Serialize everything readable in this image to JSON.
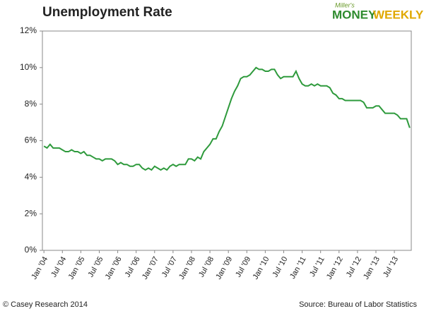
{
  "chart_data": {
    "type": "line",
    "title": "Unemployment Rate",
    "logo": {
      "small": "Miller's",
      "left": "MONEY",
      "right": "WEEKLY"
    },
    "credit": "© Casey Research 2014",
    "source": "Source: Bureau of Labor Statistics",
    "categories": [
      "Jan '04",
      null,
      null,
      null,
      null,
      null,
      "Jul '04",
      null,
      null,
      null,
      null,
      null,
      "Jan '05",
      null,
      null,
      null,
      null,
      null,
      "Jul '05",
      null,
      null,
      null,
      null,
      null,
      "Jan '06",
      null,
      null,
      null,
      null,
      null,
      "Jul '06",
      null,
      null,
      null,
      null,
      null,
      "Jan '07",
      null,
      null,
      null,
      null,
      null,
      "Jul '07",
      null,
      null,
      null,
      null,
      null,
      "Jan '08",
      null,
      null,
      null,
      null,
      null,
      "Jul '08",
      null,
      null,
      null,
      null,
      null,
      "Jan '09",
      null,
      null,
      null,
      null,
      null,
      "Jul '09",
      null,
      null,
      null,
      null,
      null,
      "Jan '10",
      null,
      null,
      null,
      null,
      null,
      "Jul '10",
      null,
      null,
      null,
      null,
      null,
      "Jan '11",
      null,
      null,
      null,
      null,
      null,
      "Jul '11",
      null,
      null,
      null,
      null,
      null,
      "Jan '12",
      null,
      null,
      null,
      null,
      null,
      "Jul '12",
      null,
      null,
      null,
      null,
      null,
      "Jan '13",
      null,
      null,
      null,
      null,
      null,
      "Jul '13",
      null,
      null,
      null,
      null,
      null
    ],
    "series": [
      {
        "name": "Unemployment Rate",
        "color": "#2e9a3c",
        "values": [
          5.7,
          5.6,
          5.8,
          5.6,
          5.6,
          5.6,
          5.5,
          5.4,
          5.4,
          5.5,
          5.4,
          5.4,
          5.3,
          5.4,
          5.2,
          5.2,
          5.1,
          5.0,
          5.0,
          4.9,
          5.0,
          5.0,
          5.0,
          4.9,
          4.7,
          4.8,
          4.7,
          4.7,
          4.6,
          4.6,
          4.7,
          4.7,
          4.5,
          4.4,
          4.5,
          4.4,
          4.6,
          4.5,
          4.4,
          4.5,
          4.4,
          4.6,
          4.7,
          4.6,
          4.7,
          4.7,
          4.7,
          5.0,
          5.0,
          4.9,
          5.1,
          5.0,
          5.4,
          5.6,
          5.8,
          6.1,
          6.1,
          6.5,
          6.8,
          7.3,
          7.8,
          8.3,
          8.7,
          9.0,
          9.4,
          9.5,
          9.5,
          9.6,
          9.8,
          10.0,
          9.9,
          9.9,
          9.8,
          9.8,
          9.9,
          9.9,
          9.6,
          9.4,
          9.5,
          9.5,
          9.5,
          9.5,
          9.8,
          9.4,
          9.1,
          9.0,
          9.0,
          9.1,
          9.0,
          9.1,
          9.0,
          9.0,
          9.0,
          8.9,
          8.6,
          8.5,
          8.3,
          8.3,
          8.2,
          8.2,
          8.2,
          8.2,
          8.2,
          8.2,
          8.1,
          7.8,
          7.8,
          7.8,
          7.9,
          7.9,
          7.7,
          7.5,
          7.5,
          7.5,
          7.5,
          7.4,
          7.2,
          7.2,
          7.2,
          6.7
        ]
      }
    ],
    "ylim": [
      0,
      12
    ],
    "yticks": [
      {
        "value": 0,
        "label": "0%"
      },
      {
        "value": 2,
        "label": "2%"
      },
      {
        "value": 4,
        "label": "4%"
      },
      {
        "value": 6,
        "label": "6%"
      },
      {
        "value": 8,
        "label": "8%"
      },
      {
        "value": 10,
        "label": "10%"
      },
      {
        "value": 12,
        "label": "12%"
      }
    ],
    "grid": false
  }
}
